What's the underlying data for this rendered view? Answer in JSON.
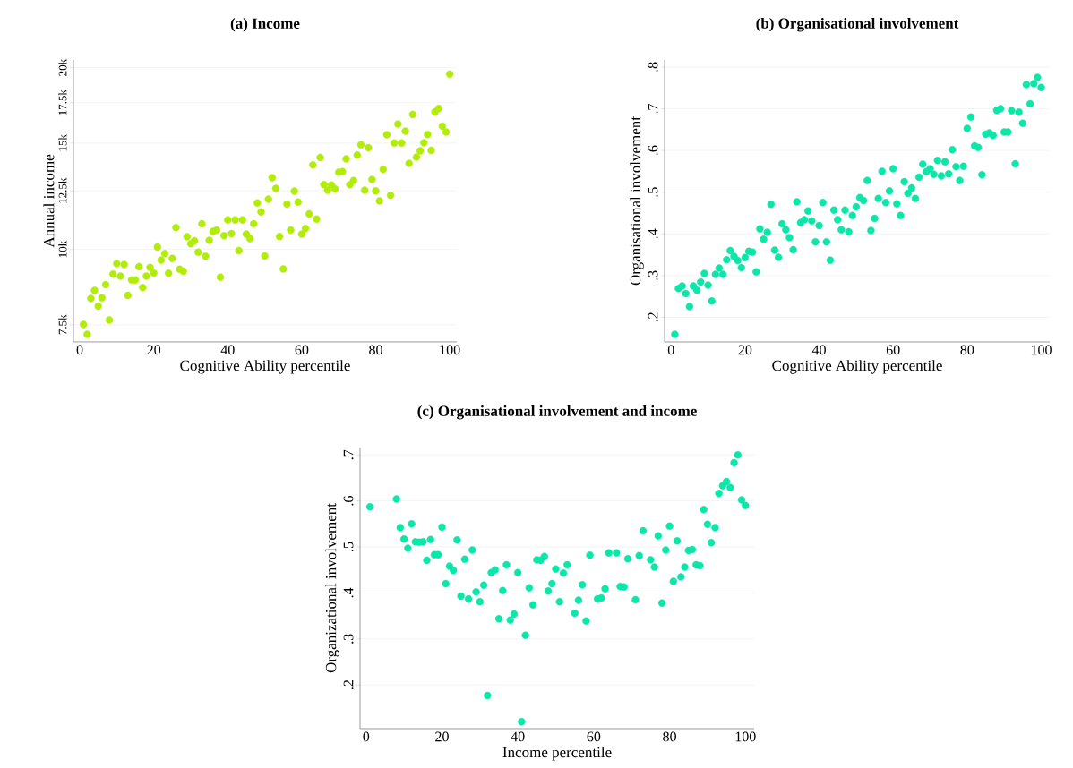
{
  "chart_data": [
    {
      "type": "scatter",
      "title": "**(a) Income**",
      "xlabel": "Cognitive Ability percentile",
      "ylabel": "Annual income",
      "color": "#b2ec0a",
      "grid": "y",
      "log": "y",
      "xlim": [
        -1.7,
        101.9
      ],
      "ylim": [
        7025,
        20600
      ],
      "xticks": [
        0,
        20,
        40,
        60,
        80,
        100
      ],
      "yticks": [
        {
          "value": 7500,
          "label": "7.5k"
        },
        {
          "value": 10000,
          "label": "10k"
        },
        {
          "value": 12500,
          "label": "12.5k"
        },
        {
          "value": 15000,
          "label": "15k"
        },
        {
          "value": 17500,
          "label": "17.5k"
        },
        {
          "value": 20000,
          "label": "20k"
        }
      ],
      "x": [
        1,
        2,
        3,
        4,
        5,
        6,
        7,
        8,
        9,
        10,
        11,
        12,
        13,
        14,
        15,
        16,
        17,
        18,
        19,
        20,
        21,
        22,
        23,
        24,
        25,
        26,
        27,
        28,
        29,
        30,
        31,
        32,
        33,
        34,
        35,
        36,
        37,
        38,
        39,
        40,
        41,
        42,
        43,
        44,
        45,
        46,
        47,
        48,
        49,
        50,
        51,
        52,
        53,
        54,
        55,
        56,
        57,
        58,
        59,
        60,
        61,
        62,
        63,
        64,
        65,
        66,
        67,
        68,
        69,
        70,
        71,
        72,
        73,
        74,
        75,
        76,
        77,
        78,
        79,
        80,
        81,
        82,
        83,
        84,
        85,
        86,
        87,
        88,
        89,
        90,
        91,
        92,
        93,
        94,
        95,
        96,
        97,
        98,
        99,
        100
      ],
      "values": [
        7510,
        7230,
        8290,
        8550,
        8050,
        8310,
        8740,
        7640,
        9100,
        9470,
        9030,
        9440,
        8390,
        8900,
        8900,
        9360,
        8640,
        9030,
        9330,
        9140,
        10090,
        9600,
        9840,
        9130,
        9660,
        10870,
        9270,
        9200,
        10490,
        10220,
        10330,
        9890,
        11020,
        9740,
        10350,
        10710,
        10760,
        8990,
        10540,
        11190,
        10620,
        11190,
        9950,
        11190,
        10600,
        10420,
        11020,
        11940,
        11530,
        9750,
        12110,
        13140,
        12620,
        10500,
        9280,
        11880,
        10760,
        12490,
        11980,
        10600,
        10830,
        11450,
        13800,
        11220,
        14200,
        12800,
        12530,
        12780,
        12600,
        13420,
        13450,
        14120,
        12800,
        13000,
        14330,
        14900,
        12530,
        14740,
        13050,
        12500,
        12030,
        13570,
        15490,
        12290,
        15000,
        16130,
        15000,
        15700,
        13880,
        16730,
        14220,
        14560,
        15020,
        15500,
        14590,
        16890,
        17120,
        16000,
        15650,
        19520
      ]
    },
    {
      "type": "scatter",
      "title": "**(b) Organisational involvement**",
      "xlabel": "Cognitive Ability percentile",
      "ylabel": "Organisational involvement",
      "color": "#0ce6a8",
      "grid": "y",
      "xlim": [
        -1.75,
        102.3
      ],
      "ylim": [
        0.141,
        0.817
      ],
      "xticks": [
        0,
        20,
        40,
        60,
        80,
        100
      ],
      "yticks": [
        {
          "value": 0.2,
          "label": ".2"
        },
        {
          "value": 0.3,
          "label": ".3"
        },
        {
          "value": 0.4,
          "label": ".4"
        },
        {
          "value": 0.5,
          "label": ".5"
        },
        {
          "value": 0.6,
          "label": ".6"
        },
        {
          "value": 0.7,
          "label": ".7"
        },
        {
          "value": 0.8,
          "label": ".8"
        }
      ],
      "x": [
        1,
        2,
        3,
        4,
        5,
        6,
        7,
        8,
        9,
        10,
        11,
        12,
        13,
        14,
        15,
        16,
        17,
        18,
        19,
        20,
        21,
        22,
        23,
        24,
        25,
        26,
        27,
        28,
        29,
        30,
        31,
        32,
        33,
        34,
        35,
        36,
        37,
        38,
        39,
        40,
        41,
        42,
        43,
        44,
        45,
        46,
        47,
        48,
        49,
        50,
        51,
        52,
        53,
        54,
        55,
        56,
        57,
        58,
        59,
        60,
        61,
        62,
        63,
        64,
        65,
        66,
        67,
        68,
        69,
        70,
        71,
        72,
        73,
        74,
        75,
        76,
        77,
        78,
        79,
        80,
        81,
        82,
        83,
        84,
        85,
        86,
        87,
        88,
        89,
        90,
        91,
        92,
        93,
        94,
        95,
        96,
        97,
        98,
        99,
        100
      ],
      "values": [
        0.159,
        0.269,
        0.275,
        0.257,
        0.226,
        0.275,
        0.265,
        0.285,
        0.305,
        0.277,
        0.239,
        0.303,
        0.318,
        0.303,
        0.338,
        0.36,
        0.346,
        0.336,
        0.319,
        0.343,
        0.358,
        0.356,
        0.309,
        0.412,
        0.387,
        0.404,
        0.471,
        0.361,
        0.344,
        0.424,
        0.41,
        0.391,
        0.362,
        0.477,
        0.427,
        0.434,
        0.455,
        0.431,
        0.381,
        0.42,
        0.475,
        0.381,
        0.337,
        0.457,
        0.434,
        0.41,
        0.457,
        0.405,
        0.444,
        0.465,
        0.487,
        0.48,
        0.528,
        0.408,
        0.437,
        0.485,
        0.55,
        0.475,
        0.503,
        0.556,
        0.472,
        0.444,
        0.525,
        0.497,
        0.51,
        0.485,
        0.536,
        0.567,
        0.549,
        0.556,
        0.543,
        0.576,
        0.539,
        0.573,
        0.544,
        0.602,
        0.561,
        0.528,
        0.562,
        0.653,
        0.68,
        0.611,
        0.607,
        0.542,
        0.639,
        0.642,
        0.636,
        0.696,
        0.7,
        0.644,
        0.644,
        0.695,
        0.568,
        0.692,
        0.665,
        0.758,
        0.712,
        0.76,
        0.775,
        0.751
      ]
    },
    {
      "type": "scatter",
      "title": "**(c) Organisational involvement and income**",
      "xlabel": "Income percentile",
      "ylabel": "Organizational involvement",
      "color": "#0ce6a8",
      "grid": "y",
      "xlim": [
        -1.6,
        102.3
      ],
      "ylim": [
        0.105,
        0.716
      ],
      "xticks": [
        0,
        20,
        40,
        60,
        80,
        100
      ],
      "yticks": [
        {
          "value": 0.2,
          "label": ".2"
        },
        {
          "value": 0.3,
          "label": ".3"
        },
        {
          "value": 0.4,
          "label": ".4"
        },
        {
          "value": 0.5,
          "label": ".5"
        },
        {
          "value": 0.6,
          "label": ".6"
        },
        {
          "value": 0.7,
          "label": ".7"
        }
      ],
      "x": [
        1,
        8,
        9,
        10,
        11,
        12,
        13,
        14,
        15,
        16,
        17,
        18,
        19,
        20,
        21,
        22,
        23,
        24,
        25,
        26,
        27,
        28,
        29,
        30,
        31,
        32,
        33,
        34,
        35,
        36,
        37,
        38,
        39,
        40,
        41,
        42,
        43,
        44,
        45,
        46,
        47,
        48,
        49,
        50,
        51,
        52,
        53,
        55,
        56,
        57,
        58,
        59,
        61,
        62,
        63,
        64,
        66,
        67,
        68,
        69,
        71,
        72,
        73,
        75,
        76,
        77,
        78,
        79,
        80,
        81,
        82,
        83,
        84,
        85,
        86,
        87,
        88,
        89,
        90,
        91,
        92,
        93,
        94,
        95,
        96,
        97,
        98,
        99,
        100
      ],
      "values": [
        0.587,
        0.604,
        0.542,
        0.517,
        0.497,
        0.55,
        0.511,
        0.51,
        0.511,
        0.471,
        0.516,
        0.483,
        0.483,
        0.543,
        0.42,
        0.458,
        0.449,
        0.515,
        0.393,
        0.473,
        0.387,
        0.493,
        0.402,
        0.381,
        0.417,
        0.177,
        0.444,
        0.45,
        0.344,
        0.405,
        0.461,
        0.341,
        0.354,
        0.444,
        0.12,
        0.308,
        0.411,
        0.374,
        0.472,
        0.471,
        0.479,
        0.404,
        0.42,
        0.452,
        0.381,
        0.443,
        0.461,
        0.356,
        0.384,
        0.418,
        0.339,
        0.482,
        0.387,
        0.389,
        0.409,
        0.487,
        0.487,
        0.414,
        0.413,
        0.474,
        0.385,
        0.481,
        0.535,
        0.472,
        0.456,
        0.524,
        0.378,
        0.493,
        0.545,
        0.425,
        0.513,
        0.435,
        0.456,
        0.492,
        0.494,
        0.461,
        0.459,
        0.581,
        0.549,
        0.509,
        0.542,
        0.616,
        0.633,
        0.642,
        0.629,
        0.683,
        0.7,
        0.602,
        0.59
      ]
    }
  ]
}
